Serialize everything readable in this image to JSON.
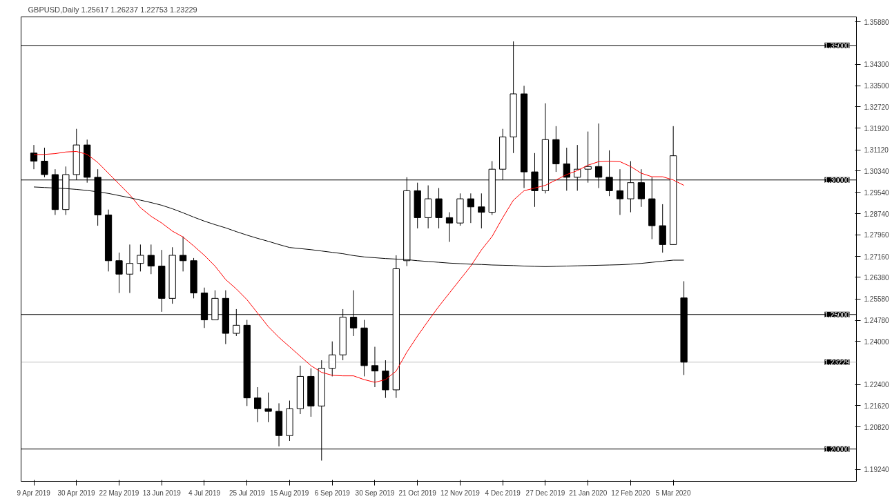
{
  "chart_data": {
    "type": "candlestick",
    "title": "GBPUSD,Daily  1.25617 1.26237 1.22753 1.23229",
    "categories": [
      "9 Apr 2019",
      null,
      null,
      null,
      "30 Apr 2019",
      null,
      null,
      null,
      "22 May 2019",
      null,
      null,
      null,
      "13 Jun 2019",
      null,
      null,
      null,
      "4 Jul 2019",
      null,
      null,
      null,
      "25 Jul 2019",
      null,
      null,
      null,
      "15 Aug 2019",
      null,
      null,
      null,
      "6 Sep 2019",
      null,
      null,
      null,
      "30 Sep 2019",
      null,
      null,
      null,
      "21 Oct 2019",
      null,
      null,
      null,
      "12 Nov 2019",
      null,
      null,
      null,
      "4 Dec 2019",
      null,
      null,
      null,
      "27 Dec 2019",
      null,
      null,
      null,
      "21 Jan 2020",
      null,
      null,
      null,
      "12 Feb 2020",
      null,
      null,
      null,
      "5 Mar 2020",
      null
    ],
    "ohlc": [
      [
        1.31,
        1.313,
        1.304,
        1.307
      ],
      [
        1.307,
        1.312,
        1.301,
        1.302
      ],
      [
        1.302,
        1.304,
        1.287,
        1.289
      ],
      [
        1.289,
        1.305,
        1.287,
        1.302
      ],
      [
        1.302,
        1.319,
        1.3,
        1.313
      ],
      [
        1.313,
        1.315,
        1.299,
        1.301
      ],
      [
        1.301,
        1.304,
        1.283,
        1.287
      ],
      [
        1.287,
        1.289,
        1.266,
        1.27
      ],
      [
        1.27,
        1.273,
        1.258,
        1.265
      ],
      [
        1.265,
        1.276,
        1.258,
        1.269
      ],
      [
        1.269,
        1.276,
        1.266,
        1.272
      ],
      [
        1.272,
        1.276,
        1.265,
        1.268
      ],
      [
        1.268,
        1.274,
        1.251,
        1.256
      ],
      [
        1.256,
        1.275,
        1.254,
        1.272
      ],
      [
        1.272,
        1.279,
        1.266,
        1.27
      ],
      [
        1.27,
        1.271,
        1.256,
        1.258
      ],
      [
        1.258,
        1.26,
        1.245,
        1.248
      ],
      [
        1.248,
        1.259,
        1.248,
        1.256
      ],
      [
        1.256,
        1.259,
        1.239,
        1.243
      ],
      [
        1.243,
        1.252,
        1.242,
        1.246
      ],
      [
        1.246,
        1.248,
        1.216,
        1.219
      ],
      [
        1.219,
        1.223,
        1.21,
        1.215
      ],
      [
        1.215,
        1.221,
        1.21,
        1.214
      ],
      [
        1.214,
        1.217,
        1.201,
        1.205
      ],
      [
        1.205,
        1.218,
        1.203,
        1.215
      ],
      [
        1.215,
        1.231,
        1.213,
        1.227
      ],
      [
        1.227,
        1.23,
        1.212,
        1.216
      ],
      [
        1.216,
        1.233,
        1.1957,
        1.23
      ],
      [
        1.23,
        1.24,
        1.227,
        1.235
      ],
      [
        1.235,
        1.252,
        1.233,
        1.249
      ],
      [
        1.249,
        1.259,
        1.242,
        1.245
      ],
      [
        1.245,
        1.248,
        1.227,
        1.231
      ],
      [
        1.231,
        1.238,
        1.223,
        1.229
      ],
      [
        1.229,
        1.233,
        1.219,
        1.222
      ],
      [
        1.222,
        1.272,
        1.219,
        1.267
      ],
      [
        1.27,
        1.301,
        1.268,
        1.296
      ],
      [
        1.296,
        1.299,
        1.282,
        1.286
      ],
      [
        1.286,
        1.298,
        1.282,
        1.293
      ],
      [
        1.293,
        1.297,
        1.282,
        1.286
      ],
      [
        1.286,
        1.288,
        1.277,
        1.284
      ],
      [
        1.284,
        1.295,
        1.283,
        1.293
      ],
      [
        1.293,
        1.295,
        1.284,
        1.29
      ],
      [
        1.29,
        1.295,
        1.282,
        1.288
      ],
      [
        1.288,
        1.307,
        1.287,
        1.304
      ],
      [
        1.304,
        1.319,
        1.3,
        1.316
      ],
      [
        1.316,
        1.3515,
        1.31,
        1.332
      ],
      [
        1.332,
        1.335,
        1.297,
        1.303
      ],
      [
        1.303,
        1.31,
        1.29,
        1.296
      ],
      [
        1.296,
        1.3285,
        1.295,
        1.315
      ],
      [
        1.315,
        1.32,
        1.303,
        1.306
      ],
      [
        1.306,
        1.312,
        1.296,
        1.301
      ],
      [
        1.301,
        1.313,
        1.296,
        1.304
      ],
      [
        1.304,
        1.318,
        1.299,
        1.305
      ],
      [
        1.305,
        1.321,
        1.297,
        1.301
      ],
      [
        1.301,
        1.311,
        1.294,
        1.296
      ],
      [
        1.296,
        1.304,
        1.287,
        1.293
      ],
      [
        1.293,
        1.307,
        1.288,
        1.299
      ],
      [
        1.299,
        1.304,
        1.29,
        1.293
      ],
      [
        1.293,
        1.301,
        1.278,
        1.283
      ],
      [
        1.283,
        1.291,
        1.273,
        1.276
      ],
      [
        1.276,
        1.32,
        1.276,
        1.309
      ],
      [
        1.25617,
        1.26237,
        1.22753,
        1.23229
      ]
    ],
    "series": [
      {
        "type": "line",
        "color": "#ff0000",
        "values": [
          1.3094,
          1.3095,
          1.3098,
          1.3104,
          1.3106,
          1.3095,
          1.3065,
          1.3025,
          1.2985,
          1.2945,
          1.2897,
          1.2865,
          1.284,
          1.281,
          1.2788,
          1.2755,
          1.272,
          1.268,
          1.263,
          1.2595,
          1.2555,
          1.2505,
          1.2455,
          1.2415,
          1.238,
          1.2345,
          1.231,
          1.2285,
          1.2274,
          1.2272,
          1.2272,
          1.2258,
          1.2248,
          1.2258,
          1.229,
          1.236,
          1.242,
          1.2476,
          1.253,
          1.258,
          1.263,
          1.268,
          1.274,
          1.279,
          1.286,
          1.2925,
          1.296,
          1.297,
          1.298,
          1.3,
          1.302,
          1.3035,
          1.3055,
          1.3068,
          1.307,
          1.3068,
          1.305,
          1.3025,
          1.3012,
          1.3012,
          1.3,
          1.298
        ]
      },
      {
        "type": "line",
        "color": "#000000",
        "values": [
          1.2974,
          1.2972,
          1.297,
          1.2968,
          1.2965,
          1.2961,
          1.2956,
          1.295,
          1.2942,
          1.2934,
          1.2925,
          1.2916,
          1.2906,
          1.2893,
          1.2878,
          1.2862,
          1.2847,
          1.2834,
          1.2822,
          1.2808,
          1.2795,
          1.2783,
          1.2772,
          1.276,
          1.2749,
          1.2745,
          1.2741,
          1.2736,
          1.2731,
          1.2726,
          1.2719,
          1.2714,
          1.2711,
          1.2708,
          1.2706,
          1.2704,
          1.27,
          1.2697,
          1.2694,
          1.2691,
          1.2689,
          1.2687,
          1.2686,
          1.2684,
          1.2683,
          1.2682,
          1.268,
          1.2679,
          1.2678,
          1.2679,
          1.268,
          1.2681,
          1.2682,
          1.2683,
          1.2684,
          1.2685,
          1.2687,
          1.269,
          1.2694,
          1.2698,
          1.2702,
          1.2702
        ]
      }
    ],
    "ylim": [
      1.188,
      1.3606
    ],
    "yticks": [
      {
        "value": 1.3588,
        "label": "1.35880"
      },
      {
        "value": 1.343,
        "label": "1.34300"
      },
      {
        "value": 1.335,
        "label": "1.33500"
      },
      {
        "value": 1.3272,
        "label": "1.32720"
      },
      {
        "value": 1.3192,
        "label": "1.31920"
      },
      {
        "value": 1.3112,
        "label": "1.31120"
      },
      {
        "value": 1.3034,
        "label": "1.30340"
      },
      {
        "value": 1.2954,
        "label": "1.29540"
      },
      {
        "value": 1.2874,
        "label": "1.28740"
      },
      {
        "value": 1.2796,
        "label": "1.27960"
      },
      {
        "value": 1.2716,
        "label": "1.27160"
      },
      {
        "value": 1.2638,
        "label": "1.26380"
      },
      {
        "value": 1.2558,
        "label": "1.25580"
      },
      {
        "value": 1.2478,
        "label": "1.24780"
      },
      {
        "value": 1.24,
        "label": "1.24000"
      },
      {
        "value": 1.224,
        "label": "1.22400"
      },
      {
        "value": 1.2162,
        "label": "1.21620"
      },
      {
        "value": 1.2082,
        "label": "1.20820"
      },
      {
        "value": 1.1924,
        "label": "1.19240"
      }
    ],
    "ref_lines": [
      {
        "axis": "y",
        "value": 1.35,
        "label": "1.35000",
        "color": "#000000"
      },
      {
        "axis": "y",
        "value": 1.3,
        "label": "1.30000",
        "color": "#000000"
      },
      {
        "axis": "y",
        "value": 1.25,
        "label": "1.25000",
        "color": "#000000"
      },
      {
        "axis": "y",
        "value": 1.2,
        "label": "1.20000",
        "color": "#000000"
      },
      {
        "axis": "y",
        "value": 1.23229,
        "label": "1.23229",
        "color": "#c0c0c0"
      }
    ],
    "grid": false
  }
}
